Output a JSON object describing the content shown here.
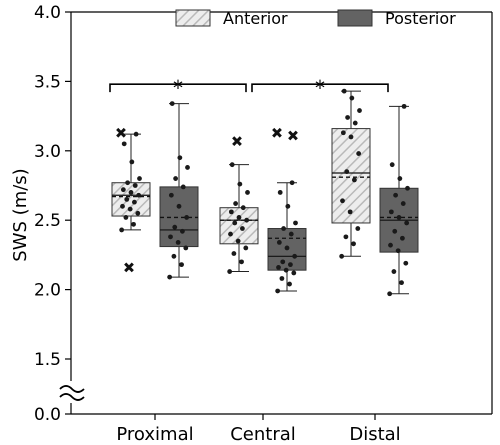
{
  "chart_data": {
    "type": "box",
    "ylabel": "SWS (m/s)",
    "xlabel": "",
    "ylim": [
      0.0,
      4.0
    ],
    "axis_break": true,
    "y_ticks": [
      "0.0",
      "1.5",
      "2.0",
      "2.5",
      "3.0",
      "3.5",
      "4.0"
    ],
    "categories": [
      "Proximal",
      "Central",
      "Distal"
    ],
    "legend": {
      "placement": "top-right"
    },
    "colors": {
      "anterior": "#d9d9d9",
      "posterior": "#636363"
    },
    "series": [
      {
        "name": "Anterior",
        "boxes": [
          {
            "min": 2.43,
            "q1": 2.53,
            "median": 2.68,
            "mean": 2.67,
            "q3": 2.77,
            "max": 3.12,
            "outliers": [
              3.13,
              2.16
            ],
            "points": [
              2.43,
              2.47,
              2.52,
              2.55,
              2.58,
              2.6,
              2.63,
              2.65,
              2.68,
              2.7,
              2.72,
              2.75,
              2.77,
              2.8,
              2.92,
              3.05,
              3.12
            ]
          },
          {
            "min": 2.13,
            "q1": 2.33,
            "median": 2.5,
            "mean": 2.5,
            "q3": 2.59,
            "max": 2.9,
            "outliers": [
              3.07
            ],
            "points": [
              2.13,
              2.2,
              2.26,
              2.3,
              2.35,
              2.4,
              2.44,
              2.48,
              2.5,
              2.52,
              2.56,
              2.59,
              2.62,
              2.7,
              2.76,
              2.9
            ]
          },
          {
            "min": 2.24,
            "q1": 2.48,
            "median": 2.84,
            "mean": 2.81,
            "q3": 3.16,
            "max": 3.43,
            "outliers": [],
            "points": [
              2.24,
              2.33,
              2.38,
              2.44,
              2.56,
              2.64,
              2.79,
              2.85,
              2.98,
              3.1,
              3.13,
              3.2,
              3.24,
              3.29,
              3.38,
              3.43
            ]
          }
        ]
      },
      {
        "name": "Posterior",
        "boxes": [
          {
            "min": 2.09,
            "q1": 2.31,
            "median": 2.43,
            "mean": 2.52,
            "q3": 2.74,
            "max": 3.34,
            "outliers": [],
            "points": [
              2.09,
              2.18,
              2.24,
              2.3,
              2.34,
              2.38,
              2.42,
              2.45,
              2.52,
              2.6,
              2.68,
              2.74,
              2.8,
              2.88,
              2.95,
              3.34
            ]
          },
          {
            "min": 1.99,
            "q1": 2.14,
            "median": 2.24,
            "mean": 2.37,
            "q3": 2.44,
            "max": 2.77,
            "outliers": [
              3.13,
              3.11
            ],
            "points": [
              1.99,
              2.04,
              2.08,
              2.12,
              2.14,
              2.16,
              2.18,
              2.2,
              2.24,
              2.3,
              2.34,
              2.4,
              2.44,
              2.48,
              2.6,
              2.7,
              2.77
            ]
          },
          {
            "min": 1.97,
            "q1": 2.27,
            "median": 2.5,
            "mean": 2.52,
            "q3": 2.73,
            "max": 3.32,
            "outliers": [],
            "points": [
              1.97,
              2.05,
              2.13,
              2.19,
              2.28,
              2.32,
              2.37,
              2.42,
              2.48,
              2.52,
              2.56,
              2.62,
              2.68,
              2.73,
              2.8,
              2.9,
              3.32
            ]
          }
        ]
      }
    ],
    "annotations": [
      {
        "text": "*",
        "between": [
          "Proximal",
          "Central"
        ],
        "y": 3.48
      },
      {
        "text": "*",
        "between": [
          "Central",
          "Distal"
        ],
        "y": 3.48
      }
    ]
  }
}
